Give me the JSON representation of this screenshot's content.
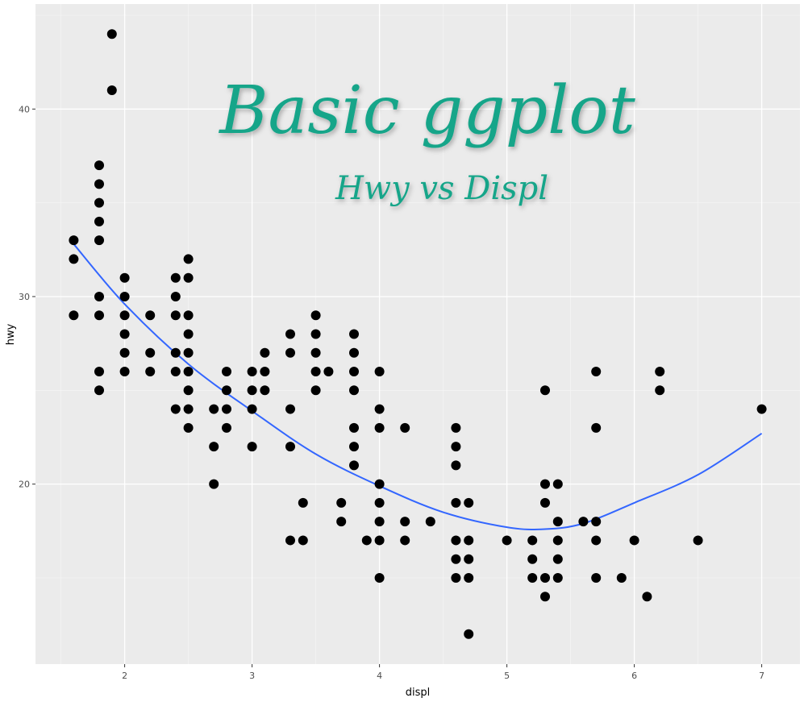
{
  "chart_data": {
    "type": "scatter",
    "title": "Basic ggplot",
    "subtitle": "Hwy vs Displ",
    "title_color": "#13a589",
    "xlabel": "displ",
    "ylabel": "hwy",
    "xlim": [
      1.3,
      7.3
    ],
    "ylim": [
      10.4,
      45.6
    ],
    "x_ticks": [
      2,
      3,
      4,
      5,
      6,
      7
    ],
    "y_ticks": [
      20,
      30,
      40
    ],
    "grid": true,
    "panel_background": "#ebebeb",
    "point_color": "#000000",
    "smooth_color": "#3366ff",
    "points": [
      [
        1.6,
        33
      ],
      [
        1.6,
        32
      ],
      [
        1.6,
        29
      ],
      [
        1.8,
        37
      ],
      [
        1.8,
        36
      ],
      [
        1.8,
        35
      ],
      [
        1.8,
        34
      ],
      [
        1.8,
        33
      ],
      [
        1.8,
        30
      ],
      [
        1.8,
        29
      ],
      [
        1.8,
        26
      ],
      [
        1.8,
        25
      ],
      [
        1.9,
        44
      ],
      [
        1.9,
        41
      ],
      [
        2.0,
        31
      ],
      [
        2.0,
        30
      ],
      [
        2.0,
        29
      ],
      [
        2.0,
        28
      ],
      [
        2.0,
        27
      ],
      [
        2.0,
        26
      ],
      [
        2.2,
        29
      ],
      [
        2.2,
        27
      ],
      [
        2.2,
        26
      ],
      [
        2.4,
        31
      ],
      [
        2.4,
        30
      ],
      [
        2.4,
        29
      ],
      [
        2.4,
        27
      ],
      [
        2.4,
        26
      ],
      [
        2.4,
        24
      ],
      [
        2.5,
        32
      ],
      [
        2.5,
        31
      ],
      [
        2.5,
        29
      ],
      [
        2.5,
        28
      ],
      [
        2.5,
        27
      ],
      [
        2.5,
        26
      ],
      [
        2.5,
        25
      ],
      [
        2.5,
        24
      ],
      [
        2.5,
        23
      ],
      [
        2.7,
        24
      ],
      [
        2.7,
        22
      ],
      [
        2.7,
        20
      ],
      [
        2.8,
        26
      ],
      [
        2.8,
        25
      ],
      [
        2.8,
        24
      ],
      [
        2.8,
        23
      ],
      [
        3.0,
        26
      ],
      [
        3.0,
        25
      ],
      [
        3.0,
        24
      ],
      [
        3.0,
        22
      ],
      [
        3.1,
        27
      ],
      [
        3.1,
        26
      ],
      [
        3.1,
        25
      ],
      [
        3.3,
        28
      ],
      [
        3.3,
        27
      ],
      [
        3.3,
        24
      ],
      [
        3.3,
        22
      ],
      [
        3.3,
        17
      ],
      [
        3.4,
        19
      ],
      [
        3.4,
        17
      ],
      [
        3.5,
        29
      ],
      [
        3.5,
        28
      ],
      [
        3.5,
        27
      ],
      [
        3.5,
        26
      ],
      [
        3.5,
        25
      ],
      [
        3.6,
        26
      ],
      [
        3.7,
        19
      ],
      [
        3.7,
        18
      ],
      [
        3.8,
        28
      ],
      [
        3.8,
        27
      ],
      [
        3.8,
        26
      ],
      [
        3.8,
        25
      ],
      [
        3.8,
        23
      ],
      [
        3.8,
        22
      ],
      [
        3.8,
        21
      ],
      [
        3.9,
        17
      ],
      [
        4.0,
        26
      ],
      [
        4.0,
        24
      ],
      [
        4.0,
        23
      ],
      [
        4.0,
        20
      ],
      [
        4.0,
        19
      ],
      [
        4.0,
        18
      ],
      [
        4.0,
        17
      ],
      [
        4.0,
        15
      ],
      [
        4.2,
        23
      ],
      [
        4.2,
        18
      ],
      [
        4.2,
        17
      ],
      [
        4.4,
        18
      ],
      [
        4.6,
        23
      ],
      [
        4.6,
        22
      ],
      [
        4.6,
        21
      ],
      [
        4.6,
        19
      ],
      [
        4.6,
        17
      ],
      [
        4.6,
        16
      ],
      [
        4.6,
        15
      ],
      [
        4.7,
        19
      ],
      [
        4.7,
        17
      ],
      [
        4.7,
        16
      ],
      [
        4.7,
        15
      ],
      [
        4.7,
        12
      ],
      [
        5.0,
        17
      ],
      [
        5.2,
        17
      ],
      [
        5.2,
        16
      ],
      [
        5.2,
        15
      ],
      [
        5.3,
        25
      ],
      [
        5.3,
        20
      ],
      [
        5.3,
        19
      ],
      [
        5.3,
        15
      ],
      [
        5.3,
        14
      ],
      [
        5.4,
        20
      ],
      [
        5.4,
        18
      ],
      [
        5.4,
        17
      ],
      [
        5.4,
        16
      ],
      [
        5.4,
        15
      ],
      [
        5.6,
        18
      ],
      [
        5.7,
        26
      ],
      [
        5.7,
        23
      ],
      [
        5.7,
        18
      ],
      [
        5.7,
        17
      ],
      [
        5.7,
        15
      ],
      [
        5.9,
        15
      ],
      [
        6.0,
        17
      ],
      [
        6.1,
        14
      ],
      [
        6.2,
        26
      ],
      [
        6.2,
        25
      ],
      [
        6.5,
        17
      ],
      [
        7.0,
        24
      ]
    ],
    "smooth": {
      "x": [
        1.6,
        2.0,
        2.5,
        3.0,
        3.5,
        4.0,
        4.5,
        5.0,
        5.3,
        5.6,
        6.0,
        6.5,
        7.0
      ],
      "y": [
        32.8,
        29.6,
        26.4,
        23.9,
        21.6,
        19.9,
        18.5,
        17.7,
        17.6,
        17.9,
        19.0,
        20.5,
        22.7
      ]
    }
  }
}
